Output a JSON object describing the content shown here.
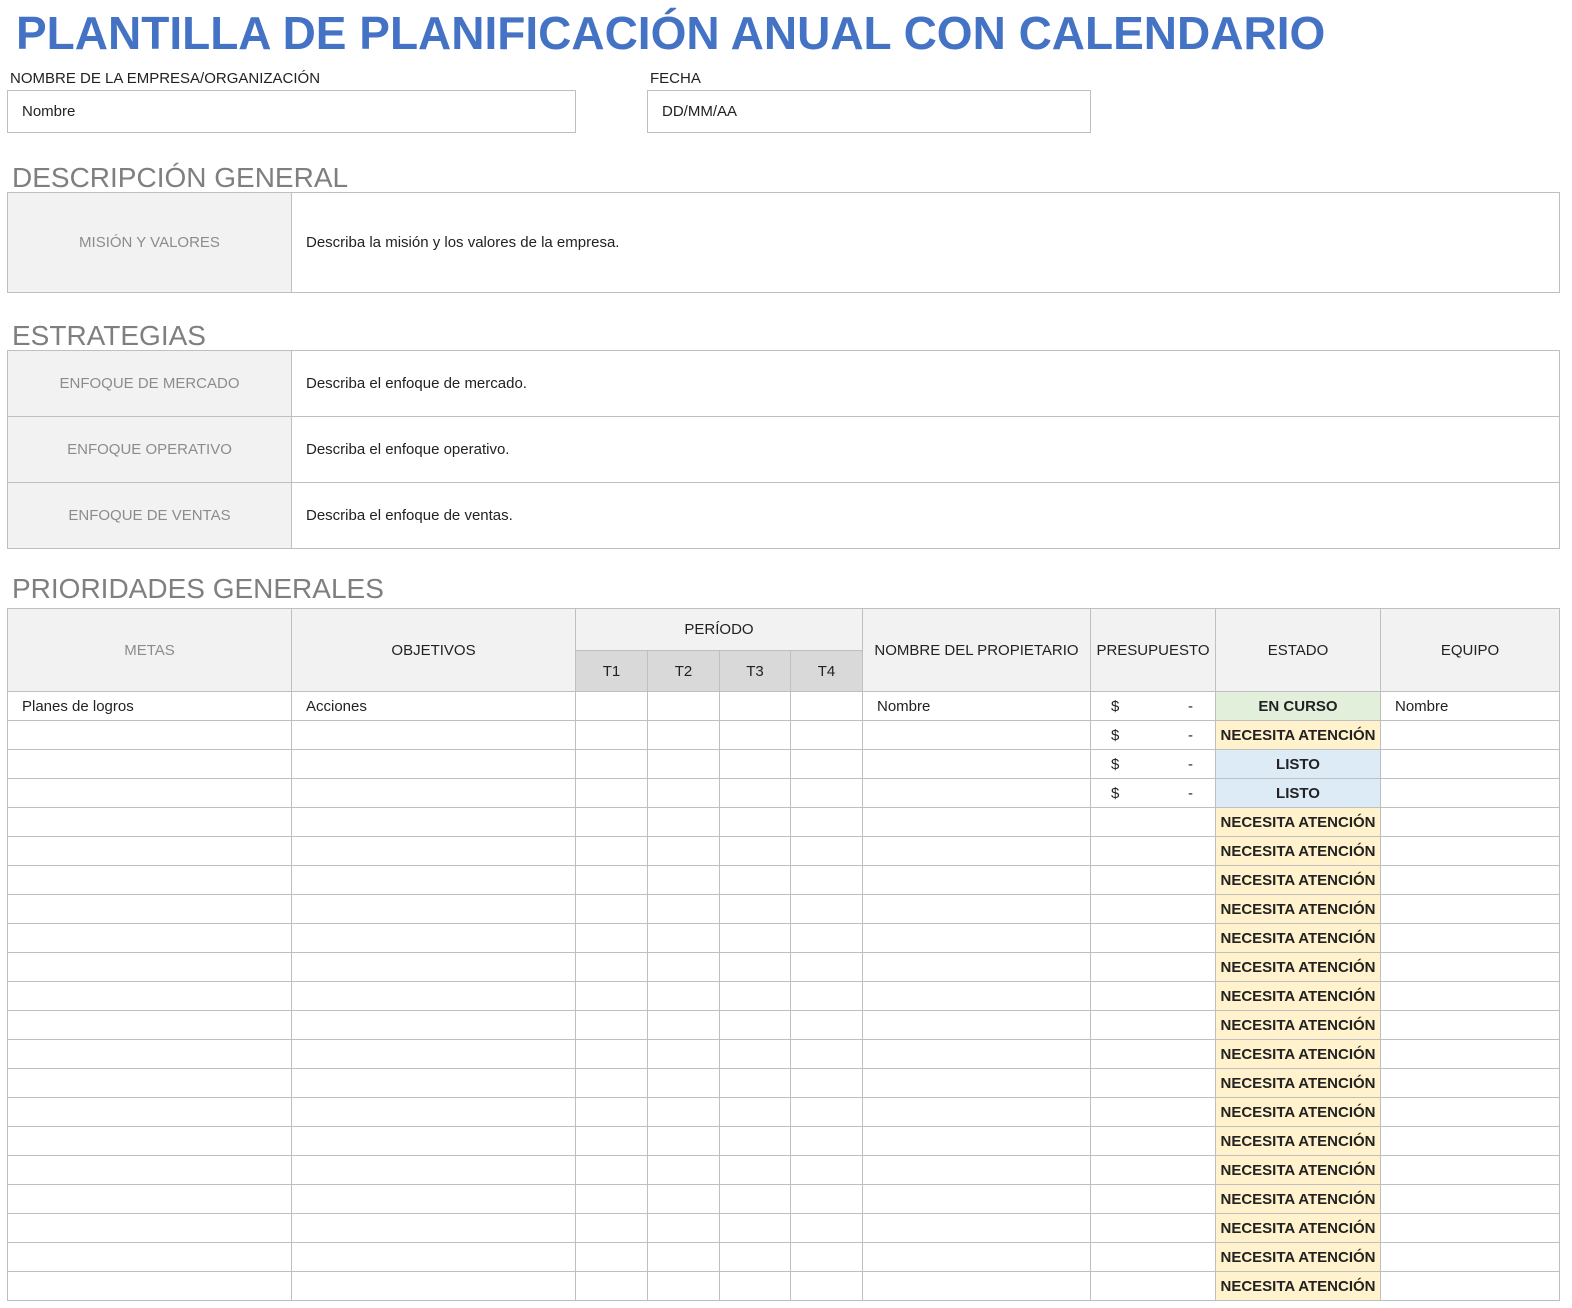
{
  "title": "PLANTILLA DE PLANIFICACIÓN ANUAL CON CALENDARIO",
  "fields": [
    {
      "label": "NOMBRE DE LA EMPRESA/ORGANIZACIÓN",
      "value": "Nombre"
    },
    {
      "label": "FECHA",
      "value": "DD/MM/AA"
    }
  ],
  "overview": {
    "heading": "DESCRIPCIÓN GENERAL",
    "rows": [
      {
        "label": "MISIÓN Y VALORES",
        "text": "Describa la misión y los valores de la empresa."
      }
    ]
  },
  "strategies": {
    "heading": "ESTRATEGIAS",
    "rows": [
      {
        "label": "ENFOQUE DE MERCADO",
        "text": "Describa el enfoque de mercado."
      },
      {
        "label": "ENFOQUE OPERATIVO",
        "text": "Describa el enfoque operativo."
      },
      {
        "label": "ENFOQUE DE VENTAS",
        "text": "Describa el enfoque de ventas."
      }
    ]
  },
  "priorities": {
    "heading": "PRIORIDADES GENERALES",
    "columns": {
      "goals": "METAS",
      "objectives": "OBJETIVOS",
      "period": "PERÍODO",
      "quarters": [
        "T1",
        "T2",
        "T3",
        "T4"
      ],
      "owner": "NOMBRE DEL PROPIETARIO",
      "budget": "PRESUPUESTO",
      "status": "ESTADO",
      "team": "EQUIPO"
    },
    "rows": [
      {
        "goal": "Planes de logros",
        "objective": "Acciones",
        "owner": "Nombre",
        "currency": "$",
        "amount": "-",
        "status": {
          "text": "EN CURSO",
          "color": "#e2efda"
        },
        "team": "Nombre"
      },
      {
        "currency": "$",
        "amount": "-",
        "status": {
          "text": "NECESITA ATENCIÓN",
          "color": "#fff2cc"
        }
      },
      {
        "currency": "$",
        "amount": "-",
        "status": {
          "text": "LISTO",
          "color": "#ddebf7"
        }
      },
      {
        "currency": "$",
        "amount": "-",
        "status": {
          "text": "LISTO",
          "color": "#ddebf7"
        }
      },
      {
        "status": {
          "text": "NECESITA ATENCIÓN",
          "color": "#fff2cc"
        }
      },
      {
        "status": {
          "text": "NECESITA ATENCIÓN",
          "color": "#fff2cc"
        }
      },
      {
        "status": {
          "text": "NECESITA ATENCIÓN",
          "color": "#fff2cc"
        }
      },
      {
        "status": {
          "text": "NECESITA ATENCIÓN",
          "color": "#fff2cc"
        }
      },
      {
        "status": {
          "text": "NECESITA ATENCIÓN",
          "color": "#fff2cc"
        }
      },
      {
        "status": {
          "text": "NECESITA ATENCIÓN",
          "color": "#fff2cc"
        }
      },
      {
        "status": {
          "text": "NECESITA ATENCIÓN",
          "color": "#fff2cc"
        }
      },
      {
        "status": {
          "text": "NECESITA ATENCIÓN",
          "color": "#fff2cc"
        }
      },
      {
        "status": {
          "text": "NECESITA ATENCIÓN",
          "color": "#fff2cc"
        }
      },
      {
        "status": {
          "text": "NECESITA ATENCIÓN",
          "color": "#fff2cc"
        }
      },
      {
        "status": {
          "text": "NECESITA ATENCIÓN",
          "color": "#fff2cc"
        }
      },
      {
        "status": {
          "text": "NECESITA ATENCIÓN",
          "color": "#fff2cc"
        }
      },
      {
        "status": {
          "text": "NECESITA ATENCIÓN",
          "color": "#fff2cc"
        }
      },
      {
        "status": {
          "text": "NECESITA ATENCIÓN",
          "color": "#fff2cc"
        }
      },
      {
        "status": {
          "text": "NECESITA ATENCIÓN",
          "color": "#fff2cc"
        }
      },
      {
        "status": {
          "text": "NECESITA ATENCIÓN",
          "color": "#fff2cc"
        }
      },
      {
        "status": {
          "text": "NECESITA ATENCIÓN",
          "color": "#fff2cc"
        }
      }
    ]
  }
}
